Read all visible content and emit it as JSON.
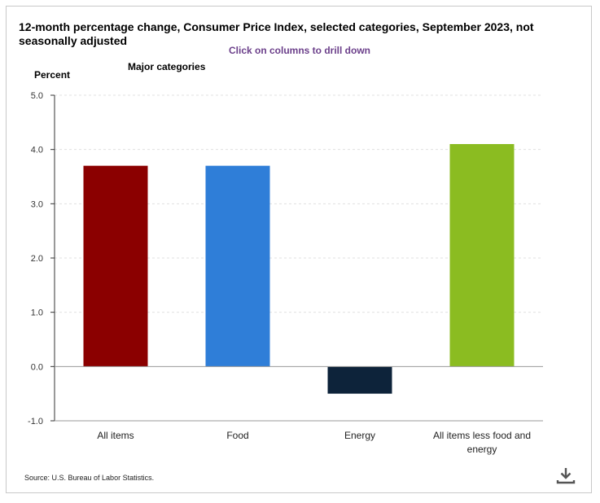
{
  "chart_data": {
    "type": "bar",
    "title": "12-month percentage change, Consumer Price Index, selected categories, September 2023, not seasonally adjusted",
    "subtitle": "Click on columns to drill down",
    "legend_title": "Major categories",
    "ylabel": "Percent",
    "xlabel": "",
    "ylim": [
      -1.0,
      5.0
    ],
    "yticks": [
      "-1.0",
      "0.0",
      "1.0",
      "2.0",
      "3.0",
      "4.0",
      "5.0"
    ],
    "grid": true,
    "categories": [
      [
        "All items"
      ],
      [
        "Food"
      ],
      [
        "Energy"
      ],
      [
        "All items less food and",
        "energy"
      ]
    ],
    "values": [
      3.7,
      3.7,
      -0.5,
      4.1
    ],
    "colors": [
      "#8b0000",
      "#2f7ed8",
      "#0d233a",
      "#8bbc21"
    ]
  },
  "source": "Source: U.S. Bureau of Labor Statistics.",
  "download_icon": "download-icon"
}
